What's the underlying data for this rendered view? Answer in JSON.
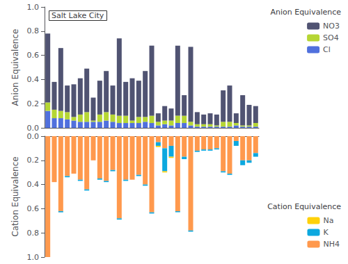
{
  "chart_data": [
    {
      "type": "bar",
      "stacked": true,
      "categories": [
        null,
        null,
        null,
        null,
        null,
        null,
        null,
        null,
        null,
        null,
        null,
        null,
        null,
        null,
        null,
        null,
        null,
        null,
        null,
        null,
        null,
        null,
        null,
        null,
        null,
        null,
        null,
        null,
        null,
        null,
        null,
        null,
        null
      ],
      "ylabel": "Anion Equivalence",
      "annotation": "Salt Lake City",
      "legend_title": "Anion Equivalence",
      "legend": "upper right",
      "tick_labels": "y",
      "grid": false,
      "ylim": [
        0.0,
        1.0
      ],
      "yticks": [
        {
          "value": 0.0,
          "label": "0.0"
        },
        {
          "value": 0.2,
          "label": "0.2"
        },
        {
          "value": 0.4,
          "label": "0.4"
        },
        {
          "value": 0.6,
          "label": "0.6"
        },
        {
          "value": 0.8,
          "label": "0.8"
        },
        {
          "value": 1.0,
          "label": "1.0"
        }
      ],
      "series": [
        {
          "name": "Cl",
          "values": [
            0.14,
            0.08,
            0.08,
            0.07,
            0.06,
            0.05,
            0.05,
            0.05,
            0.05,
            0.06,
            0.05,
            0.04,
            0.04,
            0.04,
            0.04,
            0.05,
            0.04,
            0.02,
            0.03,
            0.02,
            0.04,
            0.04,
            0.02,
            0.01,
            0.01,
            0.01,
            0.01,
            0.01,
            0.01,
            0.02,
            0.01,
            0.01,
            0.01
          ]
        },
        {
          "name": "SO4",
          "values": [
            0.07,
            0.07,
            0.06,
            0.06,
            0.03,
            0.06,
            0.08,
            0.01,
            0.06,
            0.07,
            0.06,
            0.06,
            0.06,
            0.02,
            0.05,
            0.04,
            0.06,
            0.03,
            0.03,
            0.04,
            0.06,
            0.06,
            0.03,
            0.02,
            0.02,
            0.02,
            0.01,
            0.04,
            0.04,
            0.02,
            0.01,
            0.01,
            0.03
          ]
        },
        {
          "name": "NO3",
          "values": [
            0.57,
            0.23,
            0.52,
            0.22,
            0.27,
            0.3,
            0.36,
            0.19,
            0.28,
            0.34,
            0.24,
            0.64,
            0.28,
            0.35,
            0.3,
            0.38,
            0.58,
            0.07,
            0.12,
            0.1,
            0.58,
            0.17,
            0.62,
            0.1,
            0.08,
            0.09,
            0.09,
            0.26,
            0.3,
            0.08,
            0.25,
            0.17,
            0.14
          ]
        }
      ]
    },
    {
      "type": "bar",
      "stacked": true,
      "categories": [
        null,
        null,
        null,
        null,
        null,
        null,
        null,
        null,
        null,
        null,
        null,
        null,
        null,
        null,
        null,
        null,
        null,
        null,
        null,
        null,
        null,
        null,
        null,
        null,
        null,
        null,
        null,
        null,
        null,
        null,
        null,
        null,
        null
      ],
      "ylabel": "Cation Equivalence",
      "legend_title": "Cation Equivalence",
      "legend": "lower right",
      "tick_labels": "y",
      "grid": false,
      "ylim": [
        1.0,
        0.0
      ],
      "yticks": [
        {
          "value": 0.0,
          "label": "0.0"
        },
        {
          "value": 0.2,
          "label": "0.2"
        },
        {
          "value": 0.4,
          "label": "0.4"
        },
        {
          "value": 0.6,
          "label": "0.6"
        },
        {
          "value": 0.8,
          "label": "0.8"
        },
        {
          "value": 1.0,
          "label": "1.0"
        }
      ],
      "series": [
        {
          "name": "NH4",
          "values": [
            1.0,
            0.38,
            0.62,
            0.33,
            0.31,
            0.36,
            0.44,
            0.2,
            0.35,
            0.37,
            0.28,
            0.68,
            0.36,
            0.36,
            0.32,
            0.4,
            0.63,
            0.05,
            0.1,
            0.08,
            0.62,
            0.17,
            0.78,
            0.12,
            0.11,
            0.11,
            0.1,
            0.29,
            0.31,
            0.04,
            0.2,
            0.2,
            0.14
          ]
        },
        {
          "name": "K",
          "values": [
            0.0,
            0.0,
            0.01,
            0.01,
            0.0,
            0.01,
            0.01,
            0.0,
            0.01,
            0.01,
            0.01,
            0.01,
            0.01,
            0.0,
            0.01,
            0.01,
            0.01,
            0.03,
            0.19,
            0.09,
            0.01,
            0.02,
            0.01,
            0.01,
            0.01,
            0.01,
            0.01,
            0.01,
            0.01,
            0.04,
            0.04,
            0.02,
            0.03
          ]
        },
        {
          "name": "Na",
          "values": [
            0.0,
            0.0,
            0.0,
            0.0,
            0.0,
            0.0,
            0.0,
            0.0,
            0.0,
            0.0,
            0.0,
            0.0,
            0.0,
            0.0,
            0.0,
            0.0,
            0.0,
            0.01,
            0.01,
            0.01,
            0.0,
            0.0,
            0.0,
            0.0,
            0.0,
            0.0,
            0.0,
            0.0,
            0.0,
            0.0,
            0.0,
            0.0,
            0.0
          ]
        }
      ]
    }
  ]
}
